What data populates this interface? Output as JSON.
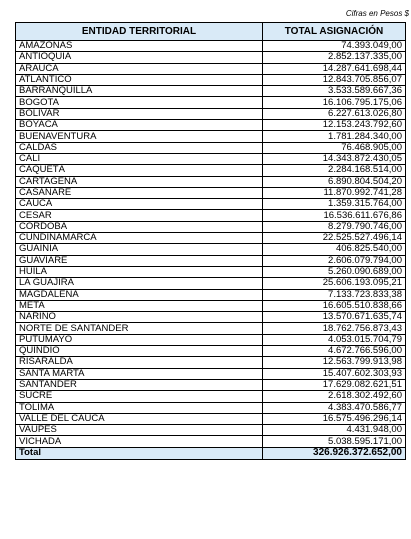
{
  "note": "Cifras en Pesos $",
  "table": {
    "headers": [
      "ENTIDAD TERRITORIAL",
      "TOTAL ASIGNACIÓN"
    ],
    "rows": [
      [
        "AMAZONAS",
        "74.393.049,00"
      ],
      [
        "ANTIOQUIA",
        "2.852.137.335,00"
      ],
      [
        "ARAUCA",
        "14.287.641.698,44"
      ],
      [
        "ATLÁNTICO",
        "12.843.705.856,07"
      ],
      [
        "BARRANQUILLA",
        "3.533.589.667,36"
      ],
      [
        "BOGOTA",
        "16.106.795.175,06"
      ],
      [
        "BOLÍVAR",
        "6.227.613.026,80"
      ],
      [
        "BOYACÁ",
        "12.153.243.792,60"
      ],
      [
        "BUENAVENTURA",
        "1.781.284.340,00"
      ],
      [
        "CALDAS",
        "76.468.905,00"
      ],
      [
        "CALI",
        "14.343.872.430,05"
      ],
      [
        "CAQUETÁ",
        "2.284.168.514,00"
      ],
      [
        "CARTAGENA",
        "6.890.804.504,20"
      ],
      [
        "CASANARE",
        "11.870.992.741,28"
      ],
      [
        "CAUCA",
        "1.359.315.764,00"
      ],
      [
        "CESAR",
        "16.536.611.676,86"
      ],
      [
        "CÓRDOBA",
        "8.279.790.746,00"
      ],
      [
        "CUNDINAMARCA",
        "22.525.527.496,14"
      ],
      [
        "GUAINÍA",
        "406.825.540,00"
      ],
      [
        "GUAVIARE",
        "2.606.079.794,00"
      ],
      [
        "HUILA",
        "5.260.090.689,00"
      ],
      [
        "LA GUAJIRA",
        "25.606.193.095,21"
      ],
      [
        "MAGDALENA",
        "7.133.723.833,38"
      ],
      [
        "META",
        "16.605.510.838,66"
      ],
      [
        "NARIÑO",
        "13.570.671.635,74"
      ],
      [
        "NORTE DE SANTANDER",
        "18.762.756.873,43"
      ],
      [
        "PUTUMAYO",
        "4.053.015.704,79"
      ],
      [
        "QUINDIO",
        "4.672.766.596,00"
      ],
      [
        "RISARALDA",
        "12.563.799.913,98"
      ],
      [
        "SANTA MARTA",
        "15.407.602.303,93"
      ],
      [
        "SANTANDER",
        "17.629.082.621,51"
      ],
      [
        "SUCRE",
        "2.618.302.492,60"
      ],
      [
        "TOLIMA",
        "4.383.470.586,77"
      ],
      [
        "VALLE DEL CAUCA",
        "16.575.496.296,14"
      ],
      [
        "VAUPÉS",
        "4.431.948,00"
      ],
      [
        "VICHADA",
        "5.038.595.171,00"
      ]
    ],
    "total": [
      "Total",
      "326.926.372.652,00"
    ]
  }
}
